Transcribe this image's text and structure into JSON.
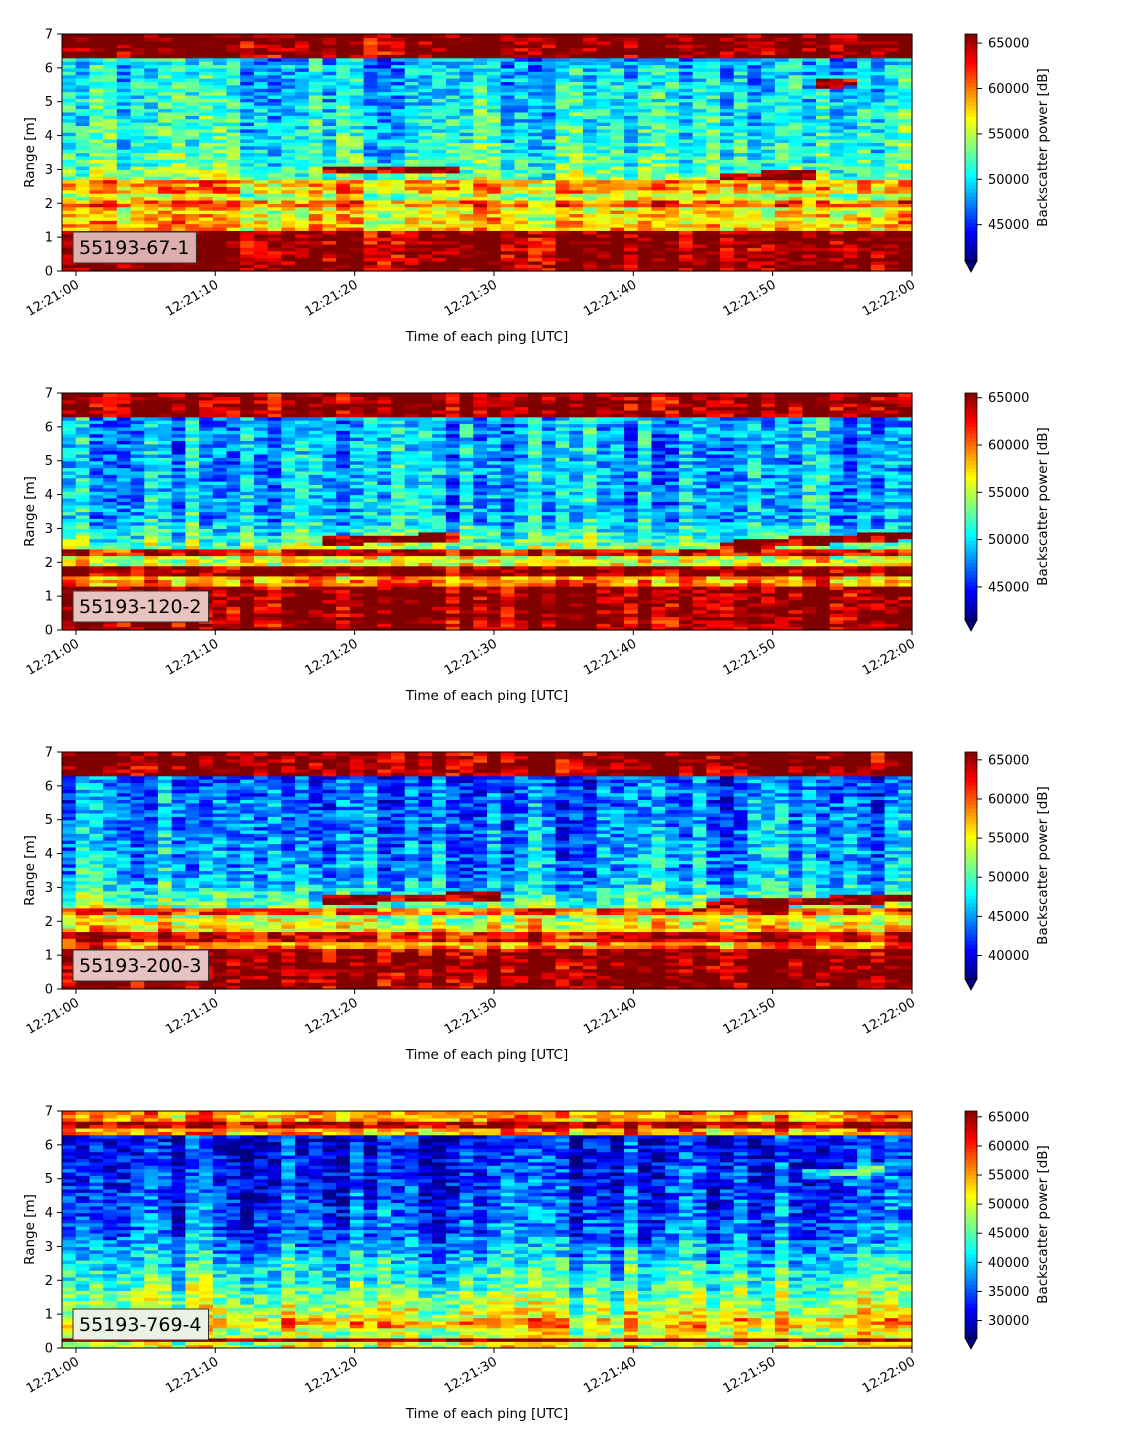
{
  "colormap": "jet",
  "chart_data": [
    {
      "type": "heatmap",
      "label": "55193-67-1",
      "xlabel": "Time of each ping [UTC]",
      "ylabel": "Range [m]",
      "colorbar_label": "Backscatter power [dB]",
      "xlim": [
        "12:20:59",
        "12:22:00"
      ],
      "ylim": [
        0,
        7
      ],
      "xticks": [
        "12:21:00",
        "12:21:10",
        "12:21:20",
        "12:21:30",
        "12:21:40",
        "12:21:50",
        "12:22:00"
      ],
      "yticks": [
        0,
        1,
        2,
        3,
        4,
        5,
        6,
        7
      ],
      "colorbar_range": [
        41000,
        66000
      ],
      "colorbar_ticks": [
        45000,
        50000,
        55000,
        60000,
        65000
      ],
      "colorbar_tick_labels": [
        "45000",
        "50000",
        "55000",
        "60000",
        "65000"
      ],
      "pings": 62,
      "range_bins": 70,
      "levels": {
        "near": 1.0,
        "low": 0.7,
        "mid": 0.42,
        "far": 0.32,
        "top": 1.0
      },
      "bands": [
        {
          "y": 0.65,
          "width": 0.45,
          "level": 1.0
        },
        {
          "y": 2.0,
          "width": 0.25,
          "level": 0.78
        },
        {
          "y": 2.5,
          "width": 0.3,
          "level": 0.7
        }
      ],
      "tracks": [
        {
          "t0": "12:21:18",
          "t1": "12:21:28",
          "y0": 3.0,
          "y1": 3.0,
          "level": 1.0
        },
        {
          "t0": "12:21:46",
          "t1": "12:21:53",
          "y0": 2.8,
          "y1": 2.85,
          "level": 1.0
        },
        {
          "t0": "12:21:53",
          "t1": "12:21:56",
          "y0": 5.5,
          "y1": 5.6,
          "level": 0.95
        }
      ],
      "label_box_color": "#dcaeae"
    },
    {
      "type": "heatmap",
      "label": "55193-120-2",
      "xlabel": "Time of each ping [UTC]",
      "ylabel": "Range [m]",
      "colorbar_label": "Backscatter power [dB]",
      "xlim": [
        "12:20:59",
        "12:22:00"
      ],
      "ylim": [
        0,
        7
      ],
      "xticks": [
        "12:21:00",
        "12:21:10",
        "12:21:20",
        "12:21:30",
        "12:21:40",
        "12:21:50",
        "12:22:00"
      ],
      "yticks": [
        0,
        1,
        2,
        3,
        4,
        5,
        6,
        7
      ],
      "colorbar_range": [
        41500,
        65500
      ],
      "colorbar_ticks": [
        45000,
        50000,
        55000,
        60000,
        65000
      ],
      "colorbar_tick_labels": [
        "45000",
        "50000",
        "55000",
        "60000",
        "65000"
      ],
      "pings": 62,
      "range_bins": 70,
      "levels": {
        "near": 1.0,
        "low": 0.8,
        "mid": 0.32,
        "far": 0.3,
        "top": 1.0
      },
      "bands": [
        {
          "y": 0.4,
          "width": 0.5,
          "level": 1.0
        },
        {
          "y": 1.1,
          "width": 0.4,
          "level": 1.0
        },
        {
          "y": 1.75,
          "width": 0.25,
          "level": 1.0
        },
        {
          "y": 2.3,
          "width": 0.25,
          "level": 0.9
        }
      ],
      "tracks": [
        {
          "t0": "12:21:18",
          "t1": "12:21:28",
          "y0": 2.65,
          "y1": 2.75,
          "level": 1.0
        },
        {
          "t0": "12:21:46",
          "t1": "12:22:00",
          "y0": 2.5,
          "y1": 2.8,
          "level": 1.0
        }
      ],
      "label_box_color": "#e8c4c0"
    },
    {
      "type": "heatmap",
      "label": "55193-200-3",
      "xlabel": "Time of each ping [UTC]",
      "ylabel": "Range [m]",
      "colorbar_label": "Backscatter power [dB]",
      "xlim": [
        "12:20:59",
        "12:22:00"
      ],
      "ylim": [
        0,
        7
      ],
      "xticks": [
        "12:21:00",
        "12:21:10",
        "12:21:20",
        "12:21:30",
        "12:21:40",
        "12:21:50",
        "12:22:00"
      ],
      "yticks": [
        0,
        1,
        2,
        3,
        4,
        5,
        6,
        7
      ],
      "colorbar_range": [
        37000,
        66000
      ],
      "colorbar_ticks": [
        40000,
        45000,
        50000,
        55000,
        60000,
        65000
      ],
      "colorbar_tick_labels": [
        "40000",
        "45000",
        "50000",
        "55000",
        "60000",
        "65000"
      ],
      "pings": 62,
      "range_bins": 70,
      "levels": {
        "near": 1.0,
        "low": 0.78,
        "mid": 0.3,
        "far": 0.22,
        "top": 1.0
      },
      "bands": [
        {
          "y": 0.6,
          "width": 0.8,
          "level": 1.0
        },
        {
          "y": 1.6,
          "width": 0.3,
          "level": 0.92
        },
        {
          "y": 2.3,
          "width": 0.25,
          "level": 0.82
        }
      ],
      "tracks": [
        {
          "t0": "12:21:18",
          "t1": "12:21:30",
          "y0": 2.65,
          "y1": 2.75,
          "level": 1.0
        },
        {
          "t0": "12:21:45",
          "t1": "12:22:00",
          "y0": 2.5,
          "y1": 2.7,
          "level": 1.0
        }
      ],
      "label_box_color": "#e6c2c0"
    },
    {
      "type": "heatmap",
      "label": "55193-769-4",
      "xlabel": "Time of each ping [UTC]",
      "ylabel": "Range [m]",
      "colorbar_label": "Backscatter power [dB]",
      "xlim": [
        "12:20:59",
        "12:22:00"
      ],
      "ylim": [
        0,
        7
      ],
      "xticks": [
        "12:21:00",
        "12:21:10",
        "12:21:20",
        "12:21:30",
        "12:21:40",
        "12:21:50",
        "12:22:00"
      ],
      "yticks": [
        0,
        1,
        2,
        3,
        4,
        5,
        6,
        7
      ],
      "colorbar_range": [
        27000,
        66000
      ],
      "colorbar_ticks": [
        30000,
        35000,
        40000,
        45000,
        50000,
        55000,
        60000,
        65000
      ],
      "colorbar_tick_labels": [
        "30000",
        "35000",
        "40000",
        "45000",
        "50000",
        "55000",
        "60000",
        "65000"
      ],
      "pings": 62,
      "range_bins": 70,
      "levels": {
        "near": 0.58,
        "low": 0.55,
        "mid": 0.24,
        "far": 0.12,
        "top": 0.72
      },
      "bands": [
        {
          "y": 0.25,
          "width": 0.12,
          "level": 1.0
        },
        {
          "y": 0.8,
          "width": 0.3,
          "level": 0.7
        },
        {
          "y": 6.6,
          "width": 0.12,
          "level": 0.95
        }
      ],
      "tracks": [
        {
          "t0": "12:21:52",
          "t1": "12:21:58",
          "y0": 5.1,
          "y1": 5.3,
          "level": 0.45
        }
      ],
      "label_box_color": "#eaf2e6"
    }
  ]
}
